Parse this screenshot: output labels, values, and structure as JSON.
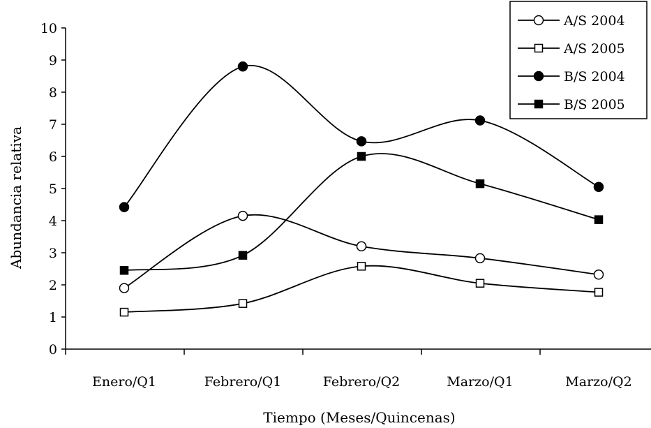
{
  "chart_data": {
    "type": "line",
    "title": "",
    "xlabel": "Tiempo (Meses/Quincenas)",
    "ylabel": "Abundancia relativa",
    "categories": [
      "Enero/Q1",
      "Febrero/Q1",
      "Febrero/Q2",
      "Marzo/Q1",
      "Marzo/Q2"
    ],
    "ylim": [
      0,
      10
    ],
    "yticks": [
      "0",
      "1",
      "2",
      "3",
      "4",
      "5",
      "6",
      "7",
      "8",
      "9",
      "10"
    ],
    "grid": false,
    "smooth": true,
    "legend_position": "top-right",
    "series": [
      {
        "name": "A/S 2004",
        "marker": "circle-open",
        "color": "#000000",
        "values": [
          1.9,
          4.15,
          3.2,
          2.83,
          2.32
        ]
      },
      {
        "name": "A/S 2005",
        "marker": "square-open",
        "color": "#000000",
        "values": [
          1.15,
          1.42,
          2.58,
          2.05,
          1.77
        ]
      },
      {
        "name": "B/S 2004",
        "marker": "circle-filled",
        "color": "#000000",
        "values": [
          4.42,
          8.8,
          6.47,
          7.12,
          5.05
        ]
      },
      {
        "name": "B/S 2005",
        "marker": "square-filled",
        "color": "#000000",
        "values": [
          2.45,
          2.92,
          6.0,
          5.15,
          4.03
        ]
      }
    ]
  }
}
